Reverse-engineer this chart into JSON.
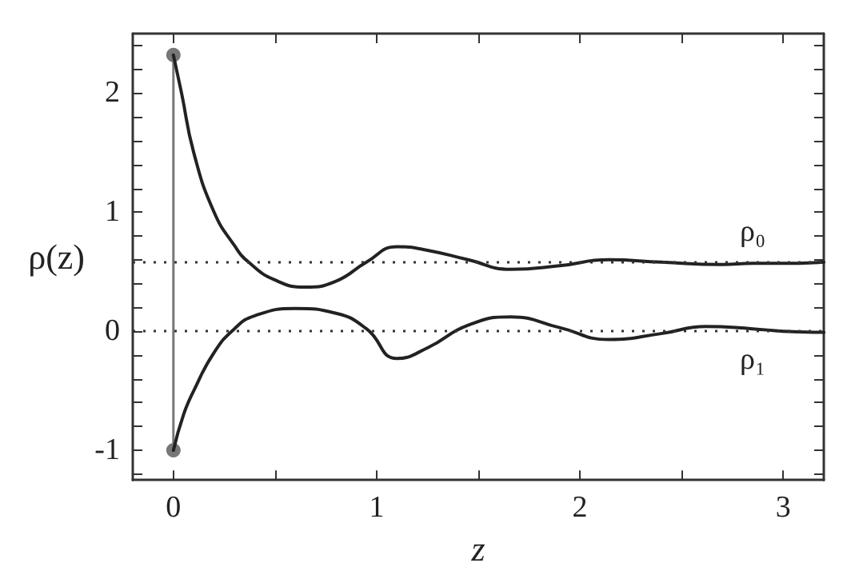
{
  "chart_data": {
    "type": "line",
    "xlabel": "z",
    "ylabel": "ρ(z)",
    "xlim": [
      -0.2,
      3.2
    ],
    "ylim": [
      -1.25,
      2.5
    ],
    "xticks": [
      0,
      {
        "value": 0.5,
        "label": null
      },
      1,
      {
        "value": 1.5,
        "label": null
      },
      2,
      {
        "value": 2.5,
        "label": null
      },
      3
    ],
    "yticks": [
      {
        "value": -1.2,
        "label": null
      },
      -1,
      {
        "value": -0.8,
        "label": null
      },
      {
        "value": -0.6,
        "label": null
      },
      {
        "value": -0.4,
        "label": null
      },
      {
        "value": -0.2,
        "label": null
      },
      0,
      {
        "value": 0.2,
        "label": null
      },
      {
        "value": 0.4,
        "label": null
      },
      {
        "value": 0.6,
        "label": null
      },
      {
        "value": 0.8,
        "label": null
      },
      1,
      {
        "value": 1.2,
        "label": null
      },
      {
        "value": 1.4,
        "label": null
      },
      {
        "value": 1.6,
        "label": null
      },
      {
        "value": 1.8,
        "label": null
      },
      2,
      {
        "value": 2.2,
        "label": null
      },
      {
        "value": 2.4,
        "label": null
      }
    ],
    "grid": false,
    "line_style": "solid",
    "series": [
      {
        "name": "ρ₀",
        "color": "#222222",
        "marker": "none",
        "x": [
          0,
          0.04,
          0.1,
          0.2,
          0.3,
          0.37,
          0.5,
          0.65,
          0.8,
          0.95,
          1.1,
          1.25,
          1.45,
          1.66,
          1.9,
          2.14,
          2.4,
          2.7,
          2.85,
          3.0,
          3.2
        ],
        "values": [
          2.32,
          2.0,
          1.5,
          1.0,
          0.72,
          0.58,
          0.43,
          0.37,
          0.42,
          0.58,
          0.71,
          0.68,
          0.6,
          0.52,
          0.55,
          0.6,
          0.58,
          0.56,
          0.57,
          0.57,
          0.58
        ]
      },
      {
        "name": "ρ₁",
        "color": "#222222",
        "marker": "none",
        "x": [
          0,
          0.05,
          0.1,
          0.2,
          0.3,
          0.4,
          0.6,
          0.8,
          0.95,
          1.1,
          1.25,
          1.45,
          1.66,
          1.9,
          2.14,
          2.4,
          2.62,
          2.85,
          3.0,
          3.2
        ],
        "values": [
          -1,
          -0.7,
          -0.5,
          -0.18,
          0.02,
          0.13,
          0.19,
          0.15,
          0.02,
          -0.23,
          -0.14,
          0.05,
          0.12,
          0.03,
          -0.07,
          -0.02,
          0.04,
          0.02,
          0.0,
          -0.01
        ]
      },
      {
        "color": "#777777",
        "marker": "circle",
        "x": [
          0,
          0
        ],
        "values": [
          -1,
          2.32
        ]
      }
    ],
    "ref_lines": [
      {
        "axis": "y",
        "value": 0.58,
        "line_style": "dotted",
        "color": "#333333"
      },
      {
        "axis": "y",
        "value": 0,
        "line_style": "dotted",
        "color": "#333333"
      }
    ]
  }
}
